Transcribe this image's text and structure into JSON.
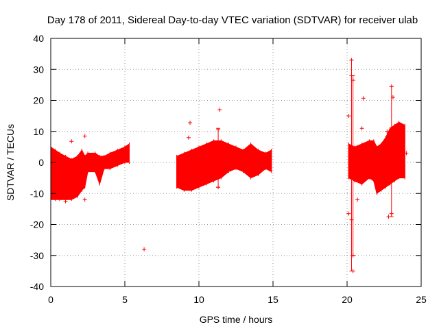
{
  "chart_data": {
    "type": "scatter",
    "title": "Day 178 of 2011, Sidereal Day-to-day VTEC variation (SDTVAR) for receiver ulab",
    "xlabel": "GPS time / hours",
    "ylabel": "SDTVAR / TECUs",
    "xlim": [
      0,
      25
    ],
    "ylim": [
      -40,
      40
    ],
    "x_ticks": [
      "0",
      "5",
      "10",
      "15",
      "20",
      "25"
    ],
    "y_ticks": [
      "40",
      "30",
      "20",
      "10",
      "0",
      "-10",
      "-20",
      "-30",
      "-40"
    ],
    "grid": true,
    "series_color": "#ff0000",
    "series": [
      {
        "name": "SDTVAR envelope",
        "x": [
          0.0,
          0.3,
          0.6,
          1.0,
          1.4,
          1.8,
          2.1,
          2.3,
          2.5,
          3.0,
          3.3,
          3.6,
          4.0,
          4.5,
          5.0,
          5.3,
          8.5,
          9.0,
          9.5,
          10.0,
          10.5,
          11.0,
          11.5,
          12.0,
          12.5,
          13.0,
          13.5,
          14.0,
          14.5,
          14.9,
          20.1,
          20.5,
          21.0,
          21.5,
          21.8,
          22.0,
          22.3,
          22.6,
          22.9,
          23.2,
          23.5,
          23.9
        ],
        "upper": [
          5,
          4,
          3,
          2,
          1,
          2,
          4,
          2,
          3,
          3,
          2,
          2,
          3,
          4,
          5,
          6,
          2,
          3,
          4,
          5,
          6,
          7,
          7,
          6,
          5,
          4,
          6,
          4,
          3,
          4,
          6,
          5,
          6,
          7,
          7,
          5,
          6,
          8,
          11,
          12,
          13,
          12
        ],
        "lower": [
          -12,
          -12,
          -12,
          -12,
          -12,
          -11,
          -9,
          -8,
          -3,
          -3,
          -7,
          -2,
          -2,
          -1,
          0,
          0,
          -8,
          -9,
          -9,
          -8,
          -7,
          -6,
          -5,
          -3,
          -2,
          -3,
          -5,
          -4,
          -2,
          -3,
          -5,
          -6,
          -7,
          -5,
          -6,
          -10,
          -9,
          -8,
          -7,
          -6,
          -5,
          -5
        ]
      },
      {
        "name": "Outliers",
        "points": [
          {
            "x": 1.4,
            "y": 6.8
          },
          {
            "x": 2.3,
            "y": 8.5
          },
          {
            "x": 2.3,
            "y": -12
          },
          {
            "x": 1.0,
            "y": -12.5
          },
          {
            "x": 6.3,
            "y": -28
          },
          {
            "x": 9.4,
            "y": 12.8
          },
          {
            "x": 9.3,
            "y": 8
          },
          {
            "x": 11.4,
            "y": 17
          },
          {
            "x": 11.3,
            "y": 10.5
          },
          {
            "x": 11.3,
            "y": -8
          },
          {
            "x": 20.1,
            "y": 15
          },
          {
            "x": 20.1,
            "y": -16.5
          },
          {
            "x": 20.3,
            "y": 33
          },
          {
            "x": 20.3,
            "y": 28
          },
          {
            "x": 20.4,
            "y": 26.5
          },
          {
            "x": 20.4,
            "y": -30
          },
          {
            "x": 20.4,
            "y": -35
          },
          {
            "x": 20.7,
            "y": -12
          },
          {
            "x": 21.1,
            "y": 20.7
          },
          {
            "x": 21.0,
            "y": 11
          },
          {
            "x": 20.3,
            "y": -18.5
          },
          {
            "x": 23.0,
            "y": 24.5
          },
          {
            "x": 23.1,
            "y": 21
          },
          {
            "x": 22.8,
            "y": -17.5
          },
          {
            "x": 23.0,
            "y": -16.5
          },
          {
            "x": 22.7,
            "y": 10
          },
          {
            "x": 24.0,
            "y": 3
          }
        ]
      },
      {
        "name": "Error bars",
        "bars": [
          {
            "x": 20.3,
            "low": -35,
            "high": 33
          },
          {
            "x": 20.4,
            "low": -30,
            "high": 28
          },
          {
            "x": 11.3,
            "low": -8,
            "high": 11
          },
          {
            "x": 23.0,
            "low": -17.5,
            "high": 24.5
          }
        ]
      }
    ]
  }
}
